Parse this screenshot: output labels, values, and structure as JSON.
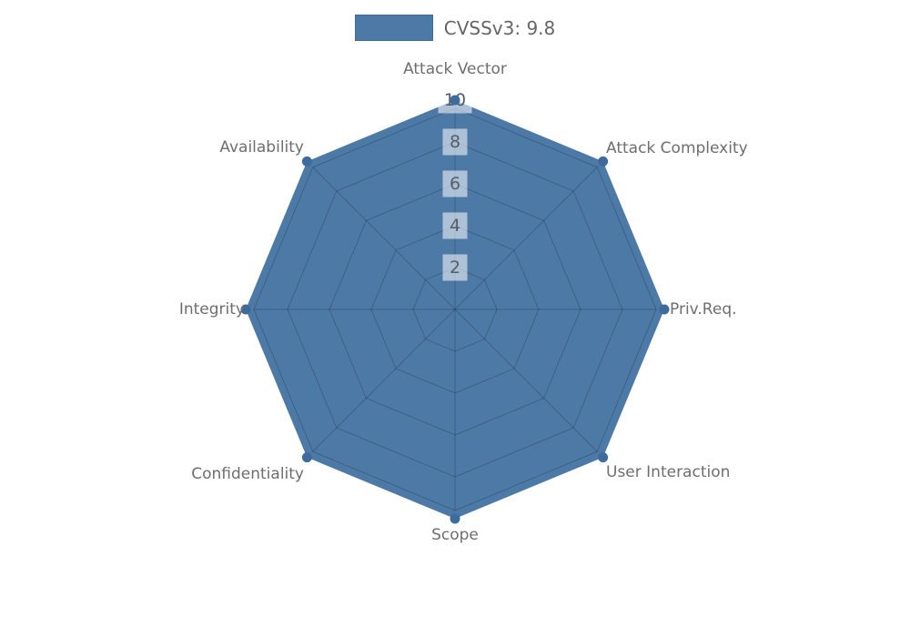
{
  "page": {
    "background_color": "#ffffff"
  },
  "legend": {
    "position": "top",
    "items": [
      {
        "label": "CVSSv3: 9.8",
        "swatch_color": "#4d79a7",
        "swatch_border_color": "#3c6b9c"
      }
    ]
  },
  "chart_data": {
    "type": "radar",
    "categories": [
      "Attack Vector",
      "Attack Complexity",
      "Priv.Req.",
      "User Interaction",
      "Scope",
      "Confidentiality",
      "Integrity",
      "Availability"
    ],
    "series": [
      {
        "name": "CVSSv3: 9.8",
        "values": [
          10,
          10,
          10,
          10,
          10,
          10,
          10,
          10
        ],
        "fill_color": "#4d79a7",
        "marker_color": "#3c6b9c"
      }
    ],
    "radial_axis": {
      "min": 0,
      "max": 10,
      "ticks": [
        2,
        4,
        6,
        8,
        10
      ],
      "tick_color": "#565d66",
      "tick_backdrop_color": "rgba(255,255,255,0.55)"
    },
    "grid": {
      "shape": "octagon",
      "line_color": "rgba(0,0,0,0.2)",
      "visible": true
    },
    "axis_label_color": "#6e6e6e",
    "legend_position": "top-center"
  }
}
